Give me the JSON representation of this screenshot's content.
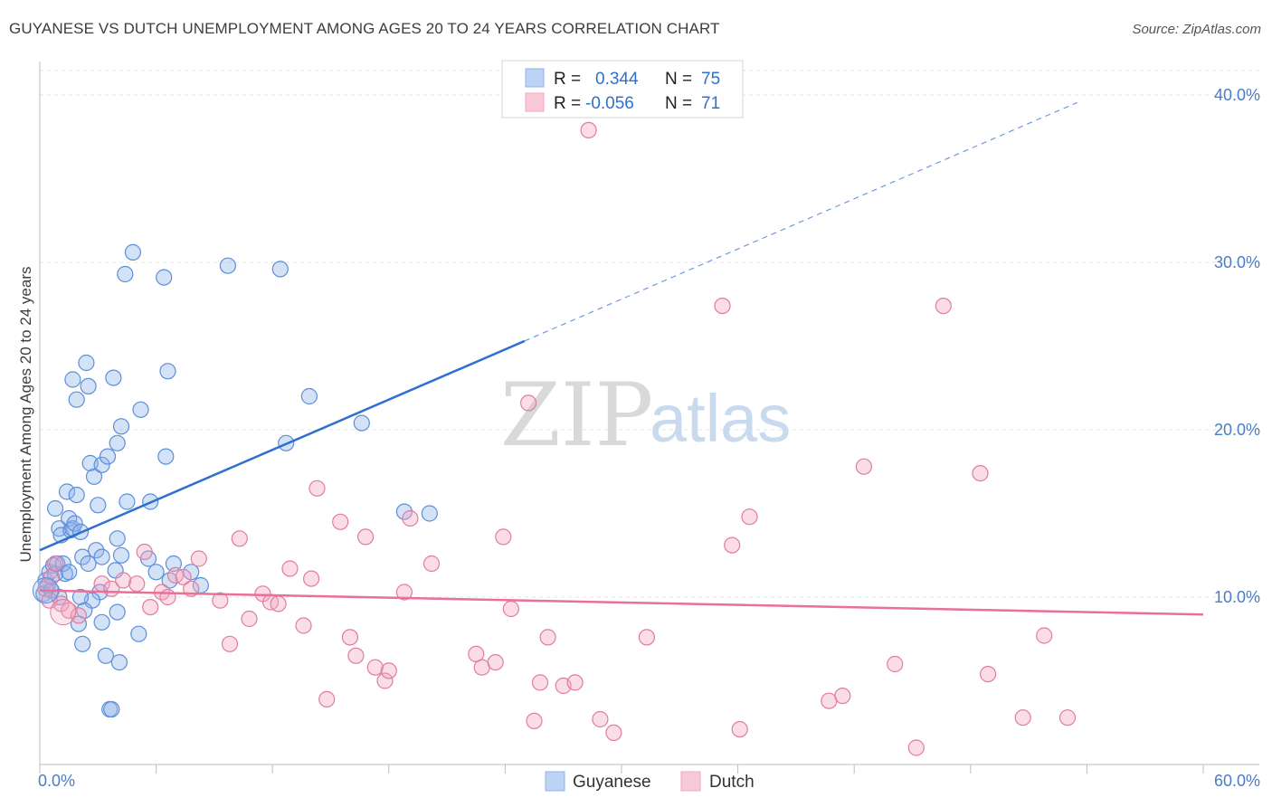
{
  "title": "GUYANESE VS DUTCH UNEMPLOYMENT AMONG AGES 20 TO 24 YEARS CORRELATION CHART",
  "source": "Source: ZipAtlas.com",
  "watermark": {
    "zip": "ZIP",
    "atlas": "atlas"
  },
  "legend": {
    "rows": [
      {
        "r_label": "R =",
        "r_value": "0.344",
        "n_label": "N =",
        "n_value": "75",
        "color": "#8fb3ea"
      },
      {
        "r_label": "R =",
        "r_value": "-0.056",
        "n_label": "N =",
        "n_value": "71",
        "color": "#f3a6bf"
      }
    ]
  },
  "bottom_legend": [
    "Guyanese",
    "Dutch"
  ],
  "chart_data": {
    "type": "scatter",
    "title": "GUYANESE VS DUTCH UNEMPLOYMENT AMONG AGES 20 TO 24 YEARS CORRELATION CHART",
    "ylabel": "Unemployment Among Ages 20 to 24 years",
    "xlabel": "",
    "xlim": [
      0,
      60
    ],
    "ylim": [
      0,
      42
    ],
    "x_tick_labels": [
      "0.0%",
      "60.0%"
    ],
    "y_ticks": [
      10,
      20,
      30,
      40
    ],
    "y_tick_labels": [
      "10.0%",
      "20.0%",
      "30.0%",
      "40.0%"
    ],
    "grid": true,
    "series": [
      {
        "name": "Guyanese",
        "color": "#8fb3ea",
        "stroke": "#5b8fd8",
        "points": [
          [
            0.2,
            10.2
          ],
          [
            0.3,
            11.0
          ],
          [
            0.4,
            10.7
          ],
          [
            0.5,
            11.5
          ],
          [
            0.6,
            10.4
          ],
          [
            0.7,
            11.9
          ],
          [
            0.8,
            11.4
          ],
          [
            0.9,
            12.0
          ],
          [
            0.8,
            15.3
          ],
          [
            1.0,
            14.1
          ],
          [
            1.1,
            13.7
          ],
          [
            1.3,
            11.4
          ],
          [
            1.2,
            12.0
          ],
          [
            1.4,
            16.3
          ],
          [
            1.5,
            14.7
          ],
          [
            1.6,
            14.0
          ],
          [
            1.7,
            14.1
          ],
          [
            1.8,
            14.4
          ],
          [
            1.9,
            16.1
          ],
          [
            2.1,
            13.9
          ],
          [
            1.7,
            23.0
          ],
          [
            1.9,
            21.8
          ],
          [
            2.4,
            24.0
          ],
          [
            2.5,
            22.6
          ],
          [
            2.6,
            18.0
          ],
          [
            2.8,
            17.2
          ],
          [
            3.0,
            15.5
          ],
          [
            3.2,
            17.9
          ],
          [
            3.5,
            18.4
          ],
          [
            3.8,
            23.1
          ],
          [
            4.0,
            19.2
          ],
          [
            4.2,
            20.2
          ],
          [
            4.5,
            15.7
          ],
          [
            4.8,
            30.6
          ],
          [
            5.2,
            21.2
          ],
          [
            5.7,
            15.7
          ],
          [
            6.5,
            18.4
          ],
          [
            6.6,
            23.5
          ],
          [
            4.4,
            29.3
          ],
          [
            6.4,
            29.1
          ],
          [
            9.7,
            29.8
          ],
          [
            12.4,
            29.6
          ],
          [
            13.9,
            22.0
          ],
          [
            12.7,
            19.2
          ],
          [
            16.6,
            20.4
          ],
          [
            18.8,
            15.1
          ],
          [
            20.1,
            15.0
          ],
          [
            2.2,
            12.4
          ],
          [
            2.5,
            12.0
          ],
          [
            2.9,
            12.8
          ],
          [
            3.2,
            12.4
          ],
          [
            4.0,
            13.5
          ],
          [
            4.2,
            12.5
          ],
          [
            3.9,
            11.6
          ],
          [
            5.6,
            12.3
          ],
          [
            6.0,
            11.5
          ],
          [
            6.9,
            12.0
          ],
          [
            7.8,
            11.5
          ],
          [
            6.7,
            11.0
          ],
          [
            8.3,
            10.7
          ],
          [
            3.1,
            10.3
          ],
          [
            2.7,
            9.8
          ],
          [
            2.1,
            10.0
          ],
          [
            2.3,
            9.2
          ],
          [
            2.0,
            8.4
          ],
          [
            3.2,
            8.5
          ],
          [
            4.0,
            9.1
          ],
          [
            5.1,
            7.8
          ],
          [
            2.2,
            7.2
          ],
          [
            3.4,
            6.5
          ],
          [
            4.1,
            6.1
          ],
          [
            3.6,
            3.3
          ],
          [
            3.7,
            3.3
          ],
          [
            1.0,
            10.0
          ],
          [
            1.5,
            11.5
          ]
        ]
      },
      {
        "name": "Dutch",
        "color": "#f3a6bf",
        "stroke": "#e07ca0",
        "points": [
          [
            0.3,
            10.5
          ],
          [
            0.6,
            11.2
          ],
          [
            0.8,
            12.0
          ],
          [
            1.1,
            9.6
          ],
          [
            1.5,
            9.2
          ],
          [
            2.0,
            8.9
          ],
          [
            3.2,
            10.8
          ],
          [
            3.7,
            10.5
          ],
          [
            4.3,
            11.0
          ],
          [
            5.0,
            10.8
          ],
          [
            5.4,
            12.7
          ],
          [
            5.7,
            9.4
          ],
          [
            6.3,
            10.3
          ],
          [
            6.6,
            10.0
          ],
          [
            7.0,
            11.3
          ],
          [
            7.4,
            11.2
          ],
          [
            7.8,
            10.5
          ],
          [
            8.2,
            12.3
          ],
          [
            9.3,
            9.8
          ],
          [
            9.8,
            7.2
          ],
          [
            10.3,
            13.5
          ],
          [
            10.8,
            8.7
          ],
          [
            11.5,
            10.2
          ],
          [
            11.9,
            9.7
          ],
          [
            12.3,
            9.6
          ],
          [
            12.9,
            11.7
          ],
          [
            13.6,
            8.3
          ],
          [
            14.0,
            11.1
          ],
          [
            14.3,
            16.5
          ],
          [
            14.8,
            3.9
          ],
          [
            15.5,
            14.5
          ],
          [
            16.0,
            7.6
          ],
          [
            16.3,
            6.5
          ],
          [
            16.8,
            13.6
          ],
          [
            17.3,
            5.8
          ],
          [
            17.8,
            5.0
          ],
          [
            18.0,
            5.6
          ],
          [
            18.8,
            10.3
          ],
          [
            19.1,
            14.7
          ],
          [
            20.2,
            12.0
          ],
          [
            22.5,
            6.6
          ],
          [
            22.8,
            5.8
          ],
          [
            23.5,
            6.1
          ],
          [
            23.9,
            13.6
          ],
          [
            24.3,
            9.3
          ],
          [
            25.2,
            21.6
          ],
          [
            25.5,
            2.6
          ],
          [
            25.8,
            4.9
          ],
          [
            26.2,
            7.6
          ],
          [
            27.0,
            4.7
          ],
          [
            27.6,
            4.9
          ],
          [
            28.3,
            37.9
          ],
          [
            28.9,
            2.7
          ],
          [
            29.6,
            1.9
          ],
          [
            31.3,
            7.6
          ],
          [
            35.2,
            27.4
          ],
          [
            35.7,
            13.1
          ],
          [
            36.1,
            2.1
          ],
          [
            36.6,
            14.8
          ],
          [
            40.7,
            3.8
          ],
          [
            41.4,
            4.1
          ],
          [
            42.5,
            17.8
          ],
          [
            44.1,
            6.0
          ],
          [
            45.2,
            1.0
          ],
          [
            46.6,
            27.4
          ],
          [
            48.5,
            17.4
          ],
          [
            48.9,
            5.4
          ],
          [
            50.7,
            2.8
          ],
          [
            51.8,
            7.7
          ],
          [
            53.0,
            2.8
          ],
          [
            0.5,
            9.8
          ]
        ]
      }
    ],
    "trend_lines": [
      {
        "series": "Guyanese",
        "solid_x": [
          0,
          25
        ],
        "dashed_x": [
          25,
          53.5
        ],
        "y_at_0": 12.8,
        "slope": 0.5,
        "color": "#2f6fcf"
      },
      {
        "series": "Dutch",
        "solid_x": [
          0,
          60
        ],
        "y_at_0": 10.4,
        "slope": -0.024,
        "color": "#e8709a"
      }
    ]
  }
}
